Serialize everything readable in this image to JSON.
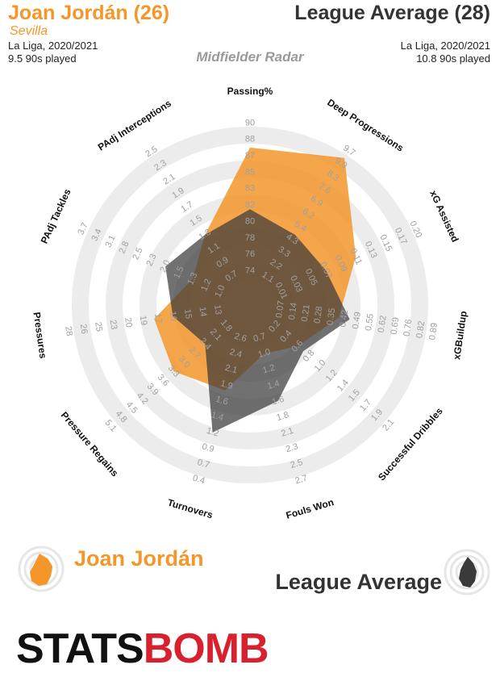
{
  "header": {
    "player_name": "Joan Jordán (26)",
    "player_team": "Sevilla",
    "player_league": "La Liga, 2020/2021",
    "player_minutes": "9.5 90s played",
    "comparison_name": "League Average (28)",
    "comparison_league": "La Liga, 2020/2021",
    "comparison_minutes": "10.8 90s played",
    "subtitle": "Midfielder Radar"
  },
  "legend": {
    "player_label": "Joan Jordán",
    "comparison_label": "League Average"
  },
  "logo": {
    "part1": "STATS",
    "part2": "BOMB"
  },
  "colors": {
    "player": "#f5962a",
    "comparison": "#3a3a3a",
    "ring": "#ececec",
    "brand_red": "#d8202e"
  },
  "chart_data": {
    "type": "radar",
    "title": "Midfielder Radar",
    "axes": [
      {
        "label": "Passing%",
        "ticks": [
          "74",
          "76",
          "78",
          "80",
          "82",
          "83",
          "85",
          "87",
          "88",
          "90"
        ]
      },
      {
        "label": "Deep Progressions",
        "ticks": [
          "1.1",
          "2.2",
          "3.3",
          "4.3",
          "5.4",
          "6.2",
          "6.9",
          "7.6",
          "8.3",
          "9.0",
          "9.7"
        ]
      },
      {
        "label": "xG Assisted",
        "ticks": [
          "0.01",
          "0.03",
          "0.05",
          "0.07",
          "0.09",
          "0.11",
          "0.13",
          "0.15",
          "0.17",
          "0.20"
        ]
      },
      {
        "label": "xGBuildup",
        "ticks": [
          "0.07",
          "0.14",
          "0.21",
          "0.28",
          "0.35",
          "0.42",
          "0.49",
          "0.55",
          "0.62",
          "0.69",
          "0.76",
          "0.82",
          "0.89"
        ]
      },
      {
        "label": "Successful Dribbles",
        "ticks": [
          "0.2",
          "0.4",
          "0.6",
          "0.8",
          "1.0",
          "1.2",
          "1.4",
          "1.5",
          "1.7",
          "1.9",
          "2.1"
        ]
      },
      {
        "label": "Fouls Won",
        "ticks": [
          "0.7",
          "1.0",
          "1.2",
          "1.4",
          "1.6",
          "1.8",
          "2.1",
          "2.3",
          "2.5",
          "2.7"
        ]
      },
      {
        "label": "Turnovers",
        "ticks": [
          "2.6",
          "2.4",
          "2.1",
          "1.9",
          "1.6",
          "1.4",
          "1.2",
          "0.9",
          "0.7",
          "0.4"
        ]
      },
      {
        "label": "Pressure Regains",
        "ticks": [
          "1.8",
          "2.1",
          "2.4",
          "2.7",
          "3.0",
          "3.3",
          "3.6",
          "3.9",
          "4.2",
          "4.5",
          "4.8",
          "5.1"
        ]
      },
      {
        "label": "Pressures",
        "ticks": [
          "13",
          "14",
          "15",
          "16",
          "17",
          "19",
          "20",
          "23",
          "25",
          "26",
          "28"
        ]
      },
      {
        "label": "PAdj Tackles",
        "ticks": [
          "1.0",
          "1.2",
          "1.3",
          "1.5",
          "2.0",
          "2.3",
          "2.5",
          "2.8",
          "3.1",
          "3.4",
          "3.7"
        ]
      },
      {
        "label": "PAdj Interceptions",
        "ticks": [
          "0.7",
          "0.9",
          "1.1",
          "1.3",
          "1.5",
          "1.7",
          "1.9",
          "2.1",
          "2.3",
          "2.5"
        ]
      }
    ],
    "series": [
      {
        "name": "Joan Jordán",
        "values": [
          87.5,
          9.3,
          0.11,
          0.39,
          0.6,
          1.0,
          1.8,
          3.3,
          17.5,
          1.3,
          1.3
        ]
      },
      {
        "name": "League Average",
        "values": [
          81.5,
          4.7,
          0.07,
          0.45,
          0.7,
          1.6,
          1.2,
          2.4,
          16,
          2.0,
          1.3
        ]
      }
    ]
  }
}
